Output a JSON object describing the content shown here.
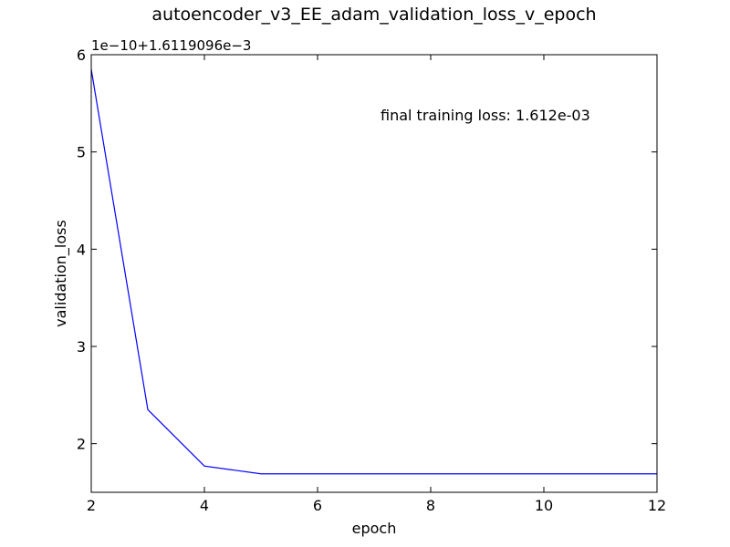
{
  "chart_data": {
    "type": "line",
    "title": "autoencoder_v3_EE_adam_validation_loss_v_epoch",
    "xlabel": "epoch",
    "ylabel": "validation_loss",
    "offset_label": "1e−10+1.6119096e−3",
    "annotation": "final training loss: 1.612e-03",
    "xlim": [
      2,
      12
    ],
    "ylim": [
      1.5,
      6
    ],
    "x_ticks": [
      2,
      4,
      6,
      8,
      10,
      12
    ],
    "y_ticks": [
      2,
      3,
      4,
      5,
      6
    ],
    "grid": false,
    "series": [
      {
        "color": "#0000ff",
        "x": [
          2,
          3,
          4,
          5,
          6,
          7,
          8,
          9,
          10,
          11,
          12
        ],
        "y": [
          5.85,
          2.35,
          1.77,
          1.69,
          1.69,
          1.69,
          1.69,
          1.69,
          1.69,
          1.69,
          1.69
        ]
      }
    ]
  }
}
